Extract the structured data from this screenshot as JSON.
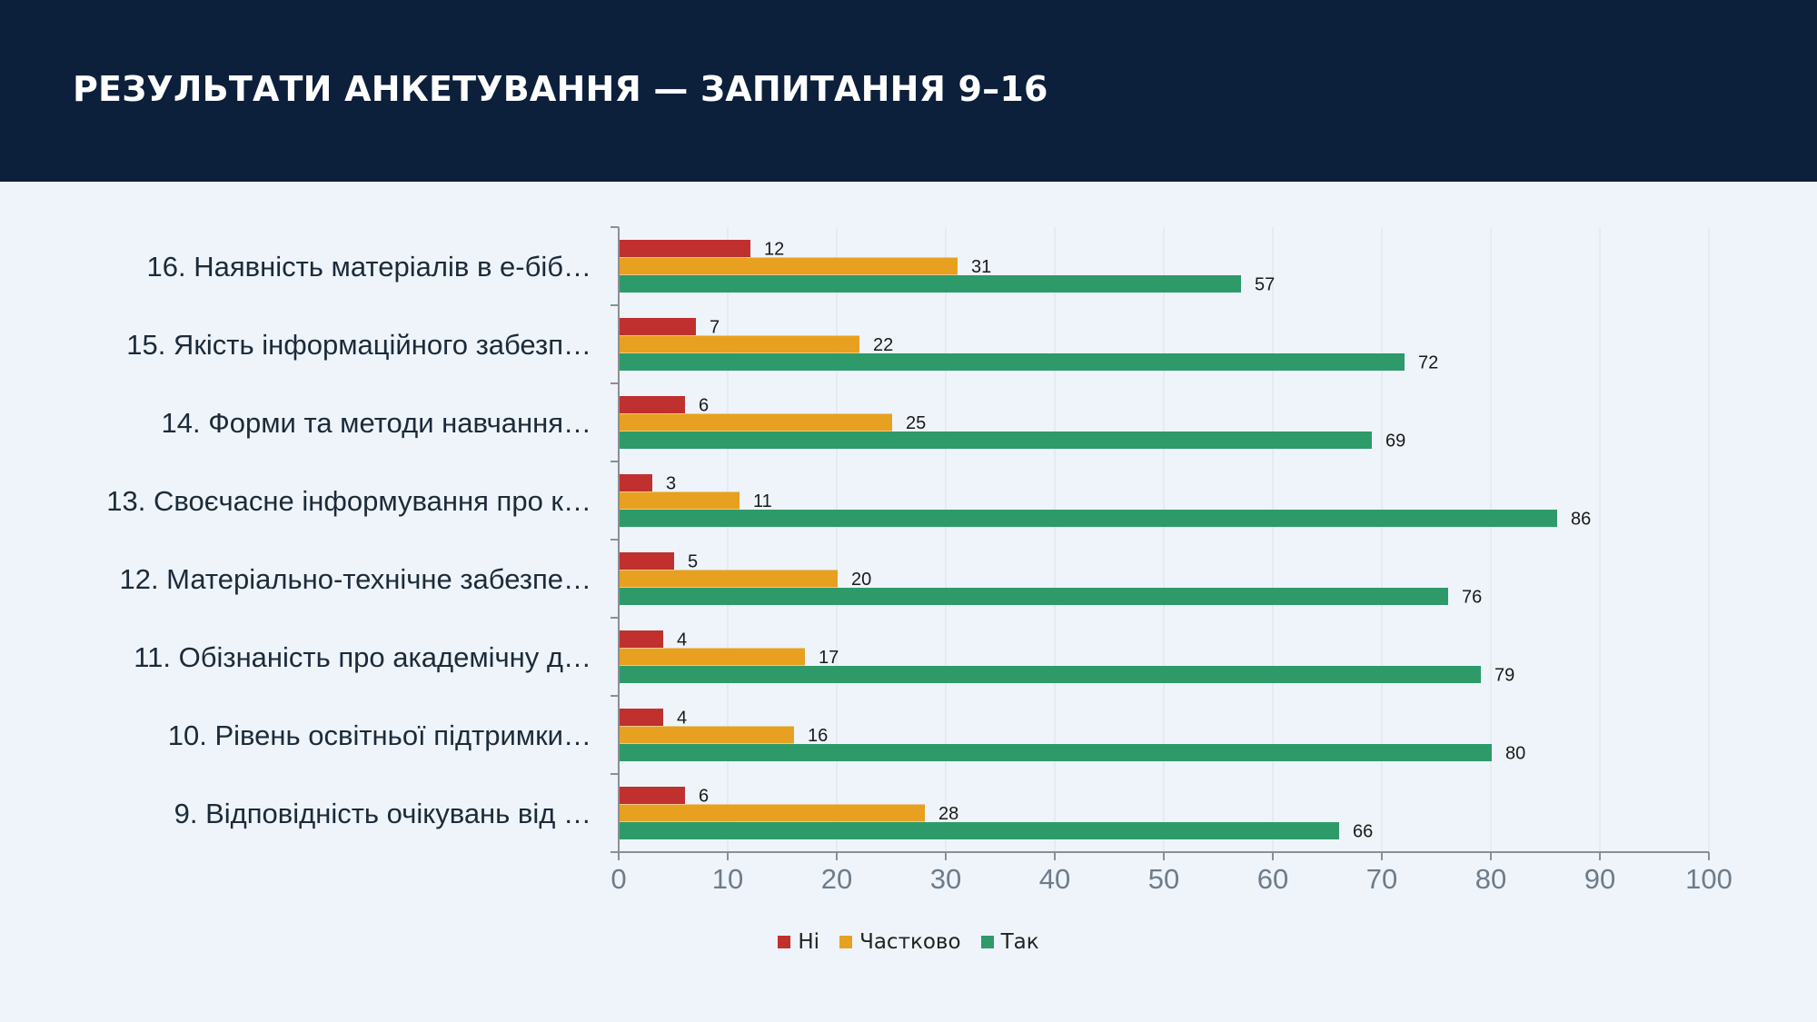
{
  "header": {
    "title": "РЕЗУЛЬТАТИ АНКЕТУВАННЯ — ЗАПИТАННЯ 9–16"
  },
  "colors": {
    "header_bg": "#0c1f3b",
    "page_bg": "#eef4f9",
    "ni": "#c0302e",
    "chastkovo": "#e8a020",
    "tak": "#2e9a6a"
  },
  "chart_data": {
    "type": "bar",
    "orientation": "horizontal",
    "categories": [
      "9. Відповідність очікувань від …",
      "10. Рівень освітньої підтримки…",
      "11. Обізнаність про академічну д…",
      "12. Матеріально-технічне забезпе…",
      "13. Своєчасне інформування про к…",
      "14. Форми та методи навчання…",
      "15. Якість інформаційного забезп…",
      "16. Наявність матеріалів в е-біб…"
    ],
    "series": [
      {
        "name": "Ні",
        "color": "#c0302e",
        "values": [
          6,
          4,
          4,
          5,
          3,
          6,
          7,
          12
        ]
      },
      {
        "name": "Частково",
        "color": "#e8a020",
        "values": [
          28,
          16,
          17,
          20,
          11,
          25,
          22,
          31
        ]
      },
      {
        "name": "Так",
        "color": "#2e9a6a",
        "values": [
          66,
          80,
          79,
          76,
          86,
          69,
          72,
          57
        ]
      }
    ],
    "xlim": [
      0,
      100
    ],
    "xticks": [
      0,
      10,
      20,
      30,
      40,
      50,
      60,
      70,
      80,
      90,
      100
    ],
    "grid": true,
    "legend_position": "bottom-center",
    "data_labels": true
  }
}
